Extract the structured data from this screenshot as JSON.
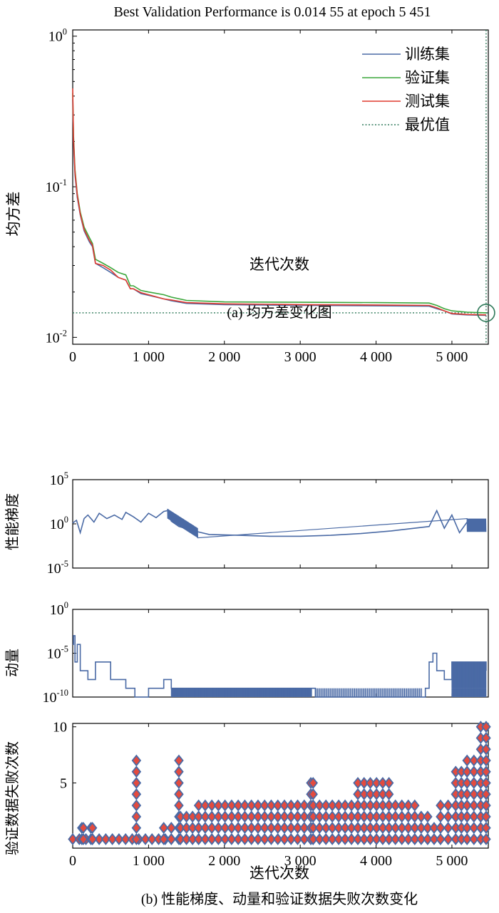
{
  "colors": {
    "blue": "#4a6aa5",
    "green": "#3aa63a",
    "red": "#e03a2f",
    "best": "#2f7a5a",
    "diamond_fill": "#e34b3f",
    "diamond_edge": "#4a6aa5"
  },
  "chart_data": [
    {
      "type": "line",
      "title": "Best Validation Performance is 0.014 55 at epoch 5 451",
      "caption": "(a) 均方差变化图",
      "xlabel": "迭代次数",
      "ylabel": "均方差",
      "yscale": "log",
      "xlim": [
        0,
        5480
      ],
      "ylim": [
        0.009,
        1.1
      ],
      "x_ticks": [
        0,
        1000,
        2000,
        3000,
        4000,
        5000
      ],
      "x_tick_labels": [
        "0",
        "1 000",
        "2 000",
        "3 000",
        "4 000",
        "5 000"
      ],
      "y_ticks": [
        0.01,
        0.1,
        1
      ],
      "y_tick_labels": [
        [
          "10",
          "-2"
        ],
        [
          "10",
          "-1"
        ],
        [
          "10",
          "0"
        ]
      ],
      "legend_position": "top-right",
      "series": [
        {
          "name": "训练集",
          "x": [
            0,
            10,
            30,
            60,
            100,
            150,
            220,
            260,
            300,
            400,
            500,
            600,
            700,
            760,
            800,
            900,
            1000,
            1200,
            1300,
            1500,
            2000,
            3000,
            4000,
            4700,
            4800,
            4900,
            5000,
            5200,
            5451
          ],
          "y": [
            0.38,
            0.2,
            0.12,
            0.085,
            0.065,
            0.051,
            0.043,
            0.04,
            0.031,
            0.029,
            0.027,
            0.025,
            0.024,
            0.021,
            0.021,
            0.0195,
            0.019,
            0.018,
            0.0175,
            0.0168,
            0.0165,
            0.0163,
            0.0162,
            0.0161,
            0.0155,
            0.015,
            0.0143,
            0.0141,
            0.014
          ]
        },
        {
          "name": "验证集",
          "x": [
            0,
            10,
            30,
            60,
            100,
            150,
            220,
            260,
            300,
            400,
            500,
            600,
            700,
            760,
            800,
            900,
            1000,
            1200,
            1300,
            1500,
            2000,
            3000,
            4000,
            4700,
            4800,
            4900,
            5000,
            5200,
            5451
          ],
          "y": [
            0.42,
            0.22,
            0.13,
            0.09,
            0.068,
            0.054,
            0.046,
            0.042,
            0.033,
            0.031,
            0.029,
            0.027,
            0.026,
            0.022,
            0.022,
            0.0205,
            0.02,
            0.0192,
            0.0185,
            0.0176,
            0.0172,
            0.0171,
            0.017,
            0.0169,
            0.0163,
            0.0155,
            0.015,
            0.0147,
            0.01455
          ]
        },
        {
          "name": "测试集",
          "x": [
            0,
            10,
            30,
            60,
            100,
            150,
            220,
            260,
            300,
            400,
            500,
            600,
            700,
            760,
            800,
            900,
            1000,
            1200,
            1300,
            1500,
            2000,
            3000,
            4000,
            4700,
            4800,
            4900,
            5000,
            5200,
            5451
          ],
          "y": [
            0.45,
            0.21,
            0.125,
            0.088,
            0.066,
            0.052,
            0.044,
            0.041,
            0.031,
            0.03,
            0.028,
            0.025,
            0.024,
            0.021,
            0.021,
            0.0198,
            0.0192,
            0.018,
            0.0177,
            0.017,
            0.0167,
            0.0165,
            0.0164,
            0.0163,
            0.0157,
            0.015,
            0.0144,
            0.0142,
            0.0141
          ]
        }
      ],
      "best_line": {
        "name": "最优值",
        "y": 0.01455
      },
      "best_point": {
        "x": 5451,
        "y": 0.01455
      }
    },
    {
      "type": "line",
      "ylabel": "性能梯度",
      "yscale": "log",
      "xlim": [
        0,
        5480
      ],
      "ylim_exp": [
        -5,
        5
      ],
      "y_tick_labels": [
        [
          "10",
          "5"
        ],
        [
          "10",
          "0"
        ],
        [
          "10",
          "-5"
        ]
      ],
      "x": [
        0,
        50,
        100,
        150,
        200,
        280,
        350,
        450,
        550,
        650,
        700,
        800,
        900,
        1000,
        1100,
        1200,
        1250,
        1300,
        1400,
        1600,
        1800,
        2200,
        2600,
        3000,
        3400,
        3800,
        4200,
        4700,
        4800,
        4900,
        5000,
        5100,
        5200,
        5300,
        5451
      ],
      "y_log10": [
        0.1,
        0.4,
        -1.0,
        0.6,
        1.0,
        0.2,
        1.2,
        0.6,
        1.0,
        0.5,
        1.3,
        0.8,
        0.2,
        1.2,
        0.7,
        1.4,
        1.5,
        0.3,
        -0.3,
        -0.8,
        -1.2,
        -1.3,
        -1.4,
        -1.4,
        -1.3,
        -1.1,
        -0.8,
        -0.3,
        1.5,
        -0.5,
        1.0,
        -1.0,
        0.2,
        -0.3,
        -0.5
      ]
    },
    {
      "type": "line",
      "ylabel": "动量",
      "yscale": "log",
      "xlim": [
        0,
        5480
      ],
      "ylim_exp": [
        -10,
        0
      ],
      "y_tick_labels": [
        [
          "10",
          "0"
        ],
        [
          "10",
          "-5"
        ],
        [
          "10",
          "-10"
        ]
      ],
      "x": [
        0,
        10,
        30,
        60,
        100,
        200,
        300,
        500,
        700,
        820,
        1000,
        1100,
        1200,
        1300,
        3150,
        3200,
        4600,
        4650,
        4700,
        4750,
        4800,
        4900,
        5000,
        5451
      ],
      "y_log10": [
        -4,
        -3,
        -6,
        -4,
        -7,
        -8,
        -6,
        -8,
        -9,
        -10,
        -9,
        -9,
        -8,
        -9,
        -9,
        -10,
        -10,
        -9,
        -6,
        -5,
        -7,
        -8,
        -6,
        -7
      ]
    },
    {
      "type": "scatter",
      "ylabel": "验证数据失败次数",
      "xlabel": "迭代次数",
      "caption": "(b) 性能梯度、动量和验证数据失败次数变化",
      "xlim": [
        0,
        5480
      ],
      "ylim": [
        -0.8,
        10.3
      ],
      "x_ticks": [
        0,
        1000,
        2000,
        3000,
        4000,
        5000
      ],
      "x_tick_labels": [
        "0",
        "1 000",
        "2 000",
        "3 000",
        "4 000",
        "5 000"
      ],
      "y_ticks": [
        5,
        10
      ],
      "y_tick_labels": [
        "5",
        "10"
      ],
      "segments": [
        {
          "x0": 0,
          "x1": 1220,
          "max": 0
        },
        {
          "x0": 120,
          "x1": 140,
          "max": 1
        },
        {
          "x0": 240,
          "x1": 260,
          "max": 1
        },
        {
          "x0": 840,
          "x1": 850,
          "max": 7
        },
        {
          "x0": 1200,
          "x1": 1300,
          "max": 1
        },
        {
          "x0": 1300,
          "x1": 1420,
          "max": 1
        },
        {
          "x0": 1400,
          "x1": 1410,
          "max": 7
        },
        {
          "x0": 1420,
          "x1": 1660,
          "max": 2
        },
        {
          "x0": 1660,
          "x1": 3140,
          "max": 3
        },
        {
          "x0": 3140,
          "x1": 3170,
          "max": 5
        },
        {
          "x0": 3170,
          "x1": 3760,
          "max": 3
        },
        {
          "x0": 3760,
          "x1": 4170,
          "max": 5
        },
        {
          "x0": 4170,
          "x1": 4510,
          "max": 3
        },
        {
          "x0": 4510,
          "x1": 4680,
          "max": 2
        },
        {
          "x0": 4680,
          "x1": 4850,
          "max": 1
        },
        {
          "x0": 4850,
          "x1": 5050,
          "max": 3
        },
        {
          "x0": 5050,
          "x1": 5200,
          "max": 6
        },
        {
          "x0": 5200,
          "x1": 5380,
          "max": 7
        },
        {
          "x0": 5380,
          "x1": 5451,
          "max": 10
        }
      ]
    }
  ]
}
